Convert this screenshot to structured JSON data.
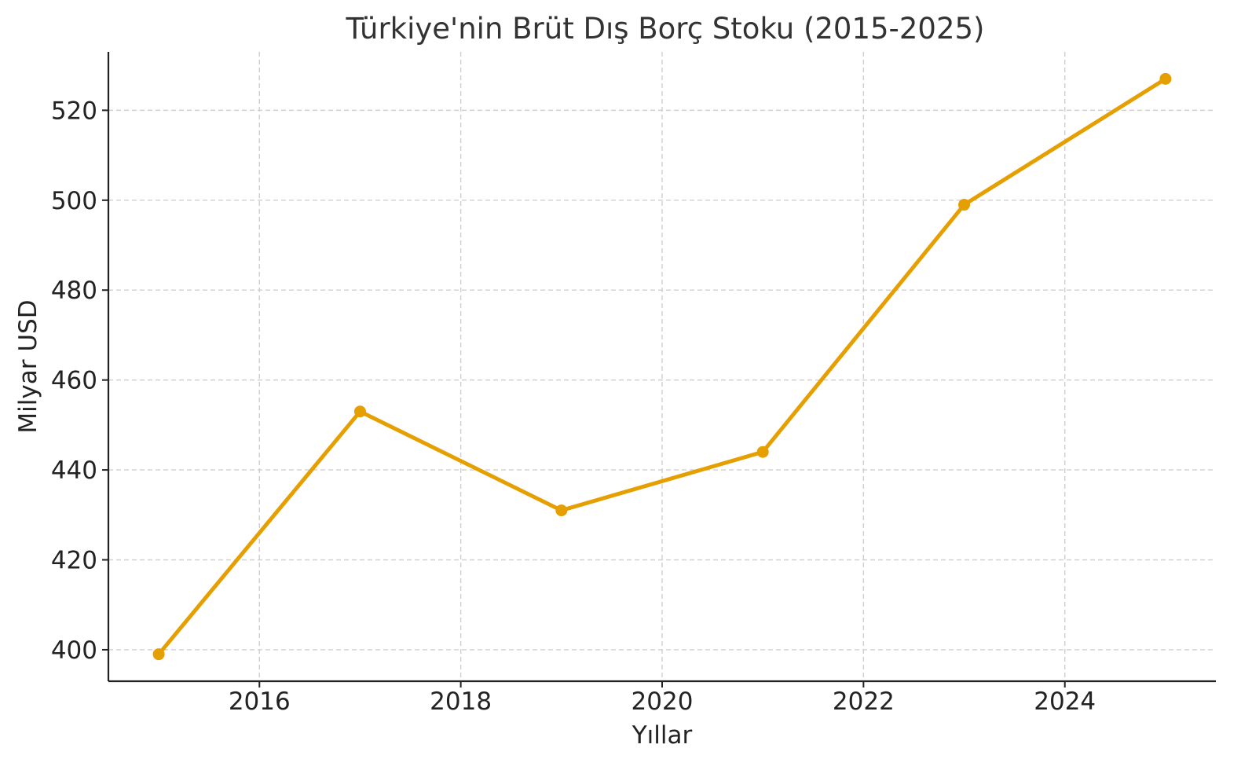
{
  "chart_data": {
    "type": "line",
    "title": "Türkiye'nin Brüt Dış Borç Stoku (2015-2025)",
    "xlabel": "Yıllar",
    "ylabel": "Milyar USD",
    "x": [
      2015,
      2017,
      2019,
      2021,
      2023,
      2025
    ],
    "series": [
      {
        "values": [
          399,
          453,
          431,
          444,
          499,
          527
        ],
        "color": "#E69F00",
        "marker": "circle"
      }
    ],
    "xlim": [
      2014.5,
      2025.5
    ],
    "ylim": [
      393,
      533
    ],
    "x_ticks": [
      2016,
      2018,
      2020,
      2022,
      2024
    ],
    "y_ticks": [
      400,
      420,
      440,
      460,
      480,
      500,
      520
    ],
    "grid": true,
    "grid_style": "dashed",
    "spines": "left-bottom"
  }
}
